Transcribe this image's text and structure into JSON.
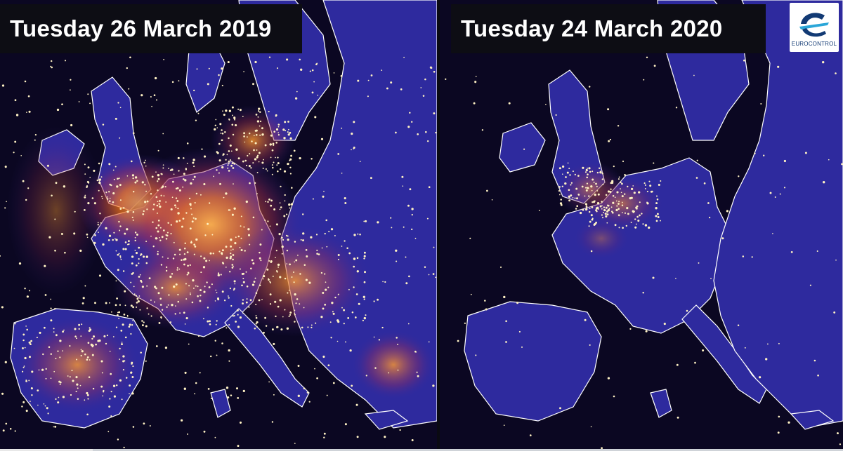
{
  "panels": [
    {
      "date": "Tuesday 26 March 2019",
      "traffic_level": 1.0
    },
    {
      "date": "Tuesday 24 March 2020",
      "traffic_level": 0.25
    }
  ],
  "logo": {
    "text": "EUROCONTROL",
    "icon": "eurocontrol-logo-icon"
  },
  "video": {
    "progress": 0.11
  },
  "colors": {
    "sea": "#0b0722",
    "land": "#2e2a9e",
    "border": "#ffffff",
    "glow": "#ff8c1a",
    "dot": "#fff2c4"
  }
}
